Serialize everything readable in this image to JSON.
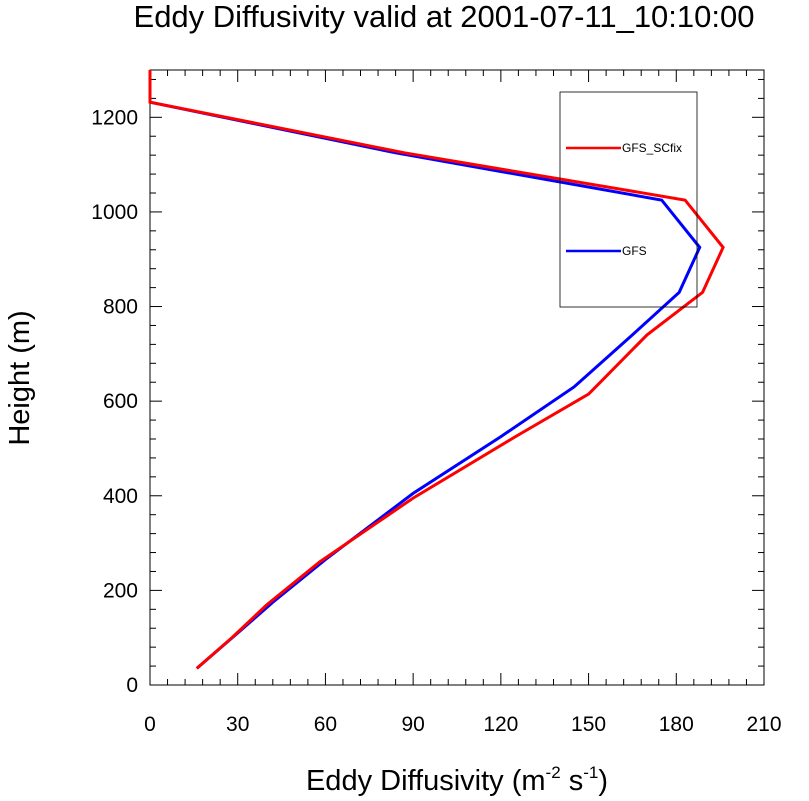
{
  "chart_data": {
    "type": "line",
    "title": "Eddy Diffusivity valid at 2001-07-11_10:10:00",
    "xlabel": "Eddy Diffusivity (m",
    "xlabel_sup1": "-2",
    "xlabel_mid": " s",
    "xlabel_sup2": "-1",
    "xlabel_end": ")",
    "ylabel": "Height (m)",
    "xlim": [
      0,
      210
    ],
    "ylim": [
      0,
      1300
    ],
    "x_ticks": [
      0,
      30,
      60,
      90,
      120,
      150,
      180,
      210
    ],
    "y_ticks": [
      0,
      200,
      400,
      600,
      800,
      1000,
      1200
    ],
    "legend": {
      "position": "top-right",
      "box": true
    },
    "series": [
      {
        "name": "GFS_SCfix",
        "color": "#ff0000",
        "points": [
          [
            16,
            35
          ],
          [
            28,
            100
          ],
          [
            40,
            170
          ],
          [
            58,
            260
          ],
          [
            90,
            395
          ],
          [
            125,
            525
          ],
          [
            150,
            615
          ],
          [
            170,
            740
          ],
          [
            189,
            830
          ],
          [
            196,
            925
          ],
          [
            183,
            1025
          ],
          [
            87,
            1125
          ],
          [
            0,
            1232
          ],
          [
            0,
            1300
          ]
        ]
      },
      {
        "name": "GFS",
        "color": "#0000ff",
        "points": [
          [
            16,
            35
          ],
          [
            30,
            110
          ],
          [
            42,
            175
          ],
          [
            60,
            265
          ],
          [
            90,
            405
          ],
          [
            120,
            525
          ],
          [
            145,
            630
          ],
          [
            165,
            740
          ],
          [
            181,
            830
          ],
          [
            188,
            925
          ],
          [
            175,
            1025
          ],
          [
            84,
            1125
          ],
          [
            0,
            1232
          ],
          [
            0,
            1300
          ]
        ]
      }
    ]
  }
}
